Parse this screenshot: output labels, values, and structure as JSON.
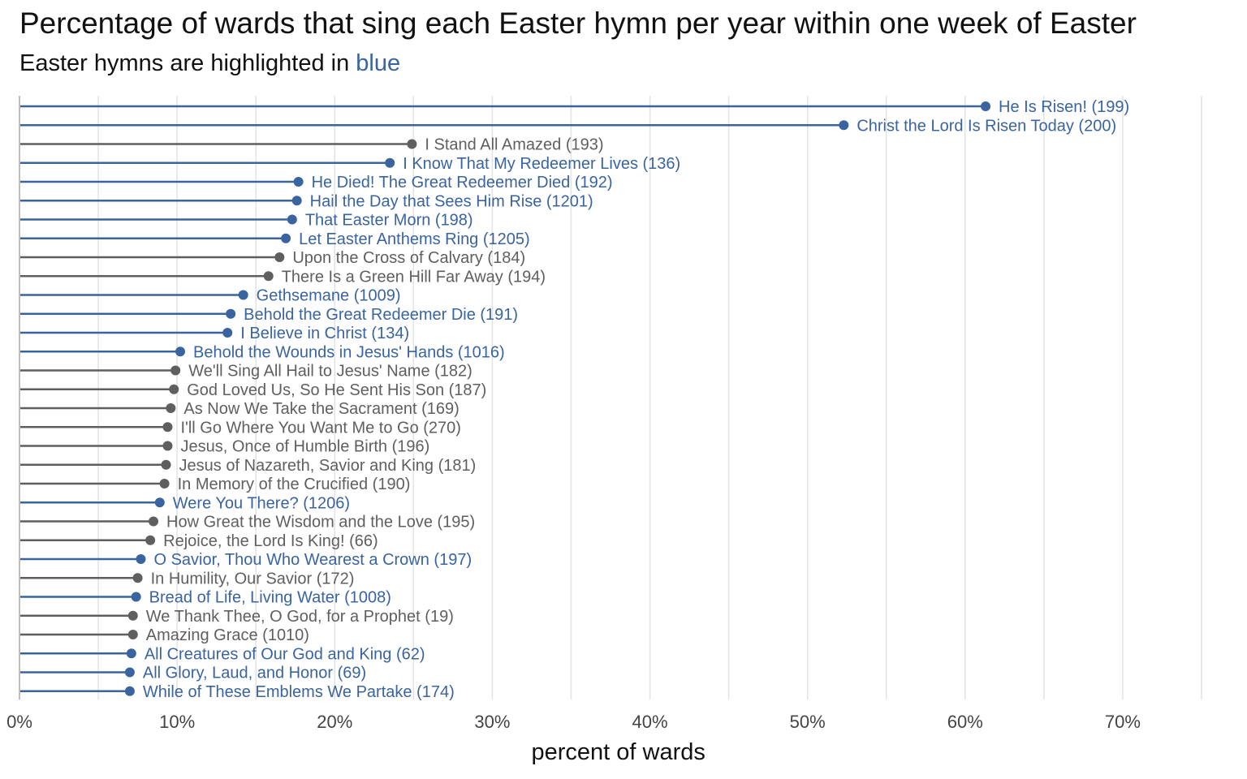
{
  "chart_data": {
    "type": "lollipop",
    "title": "Percentage of wards that sing each Easter hymn per year within one week of Easter",
    "subtitle_prefix": "Easter hymns are highlighted in ",
    "subtitle_highlight": "blue",
    "xlabel": "percent of wards",
    "ylabel": "",
    "xlim": [
      0,
      75
    ],
    "xticks": [
      0,
      10,
      20,
      30,
      40,
      50,
      60,
      70
    ],
    "xtick_labels": [
      "0%",
      "10%",
      "20%",
      "30%",
      "40%",
      "50%",
      "60%",
      "70%"
    ],
    "grid": "vertical",
    "colors": {
      "easter": "#3a64a0",
      "other": "#5f5f5f",
      "grid": "#e3e3e3"
    },
    "items": [
      {
        "label": "He Is Risen! (199)",
        "value": 61.3,
        "easter": true
      },
      {
        "label": "Christ the Lord Is Risen Today (200)",
        "value": 52.3,
        "easter": true
      },
      {
        "label": "I Stand All Amazed (193)",
        "value": 24.9,
        "easter": false
      },
      {
        "label": "I Know That My Redeemer Lives (136)",
        "value": 23.5,
        "easter": true
      },
      {
        "label": "He Died! The Great Redeemer Died (192)",
        "value": 17.7,
        "easter": true
      },
      {
        "label": "Hail the Day that Sees Him Rise (1201)",
        "value": 17.6,
        "easter": true
      },
      {
        "label": "That Easter Morn (198)",
        "value": 17.3,
        "easter": true
      },
      {
        "label": "Let Easter Anthems Ring (1205)",
        "value": 16.9,
        "easter": true
      },
      {
        "label": "Upon the Cross of Calvary (184)",
        "value": 16.5,
        "easter": false
      },
      {
        "label": "There Is a Green Hill Far Away (194)",
        "value": 15.8,
        "easter": false
      },
      {
        "label": "Gethsemane (1009)",
        "value": 14.2,
        "easter": true
      },
      {
        "label": "Behold the Great Redeemer Die (191)",
        "value": 13.4,
        "easter": true
      },
      {
        "label": "I Believe in Christ (134)",
        "value": 13.2,
        "easter": true
      },
      {
        "label": "Behold the Wounds in Jesus' Hands (1016)",
        "value": 10.2,
        "easter": true
      },
      {
        "label": "We'll Sing All Hail to Jesus' Name (182)",
        "value": 9.9,
        "easter": false
      },
      {
        "label": "God Loved Us, So He Sent His Son (187)",
        "value": 9.8,
        "easter": false
      },
      {
        "label": "As Now We Take the Sacrament (169)",
        "value": 9.6,
        "easter": false
      },
      {
        "label": "I'll Go Where You Want Me to Go (270)",
        "value": 9.4,
        "easter": false
      },
      {
        "label": "Jesus, Once of Humble Birth (196)",
        "value": 9.4,
        "easter": false
      },
      {
        "label": "Jesus of Nazareth, Savior and King (181)",
        "value": 9.3,
        "easter": false
      },
      {
        "label": "In Memory of the Crucified (190)",
        "value": 9.2,
        "easter": false
      },
      {
        "label": "Were You There? (1206)",
        "value": 8.9,
        "easter": true
      },
      {
        "label": "How Great the Wisdom and the Love (195)",
        "value": 8.5,
        "easter": false
      },
      {
        "label": "Rejoice, the Lord Is King! (66)",
        "value": 8.3,
        "easter": false
      },
      {
        "label": "O Savior, Thou Who Wearest a Crown (197)",
        "value": 7.7,
        "easter": true
      },
      {
        "label": "In Humility, Our Savior (172)",
        "value": 7.5,
        "easter": false
      },
      {
        "label": "Bread of Life, Living Water (1008)",
        "value": 7.4,
        "easter": true
      },
      {
        "label": "We Thank Thee, O God, for a Prophet (19)",
        "value": 7.2,
        "easter": false
      },
      {
        "label": "Amazing Grace (1010)",
        "value": 7.2,
        "easter": false
      },
      {
        "label": "All Creatures of Our God and King (62)",
        "value": 7.1,
        "easter": true
      },
      {
        "label": "All Glory, Laud, and Honor (69)",
        "value": 7.0,
        "easter": true
      },
      {
        "label": "While of These Emblems We Partake (174)",
        "value": 7.0,
        "easter": true
      }
    ]
  }
}
